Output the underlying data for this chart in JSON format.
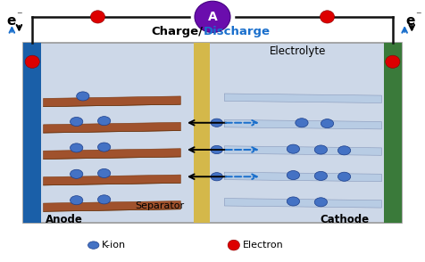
{
  "fig_width": 4.76,
  "fig_height": 2.94,
  "dpi": 100,
  "bg_color": "#ffffff",
  "cell_bg": "#cdd8e8",
  "anode_color": "#1a5fa8",
  "anode_layer_color": "#a0522d",
  "cathode_color": "#3a7a3a",
  "cathode_layer_color": "#b8cce4",
  "separator_color": "#d4b84a",
  "kion_color": "#4472c4",
  "electron_color": "#dd0000",
  "wire_color": "#111111",
  "ammeter_color": "#6a0dad",
  "arrow_charge_color": "#111111",
  "arrow_discharge_color": "#1a6fcc",
  "title_charge": "Charge/",
  "title_discharge": "Discharge",
  "label_anode": "Anode",
  "label_cathode": "Cathode",
  "label_separator": "Separator",
  "label_electrolyte": "Electrolyte",
  "label_kion": "K-ion",
  "label_electron": "Electron"
}
